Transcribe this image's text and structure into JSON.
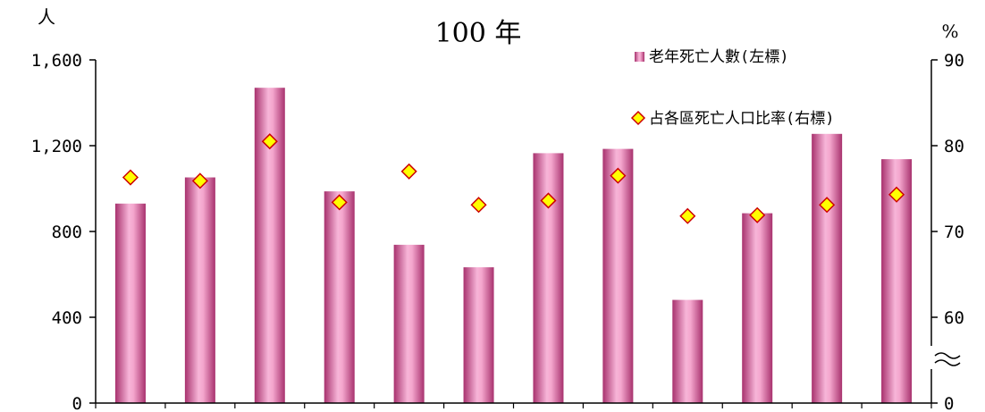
{
  "chart_data": {
    "type": "bar",
    "title": "100 年",
    "left_unit": "人",
    "right_unit": "%",
    "categories": [
      "",
      "",
      "",
      "",
      "",
      "",
      "",
      "",
      "",
      "",
      "",
      ""
    ],
    "series": [
      {
        "name": "老年死亡人數(左標)",
        "type": "bar",
        "axis": "left",
        "values": [
          930,
          1052,
          1470,
          987,
          738,
          633,
          1165,
          1185,
          481,
          885,
          1255,
          1137
        ]
      },
      {
        "name": "占各區死亡人口比率(右標)",
        "type": "scatter",
        "axis": "right",
        "values": [
          76.3,
          75.9,
          80.5,
          73.4,
          77.0,
          73.1,
          73.6,
          76.5,
          71.8,
          71.9,
          73.1,
          74.3
        ]
      }
    ],
    "left_axis": {
      "min": 0,
      "max": 1600,
      "ticks": [
        "0",
        "400",
        "800",
        "1,200",
        "1,600"
      ],
      "tick_values": [
        0,
        400,
        800,
        1200,
        1600
      ]
    },
    "right_axis": {
      "min": 50,
      "max": 90,
      "ticks": [
        "0",
        "60",
        "70",
        "80",
        "90"
      ],
      "tick_values": [
        50,
        60,
        70,
        80,
        90
      ],
      "axis_break": true
    },
    "legend_position": "top-right",
    "grid": false
  },
  "colors": {
    "bar_dark": "#a8326e",
    "bar_light": "#f7b5d8",
    "marker_fill": "#ffff00",
    "marker_stroke": "#cc0000"
  }
}
